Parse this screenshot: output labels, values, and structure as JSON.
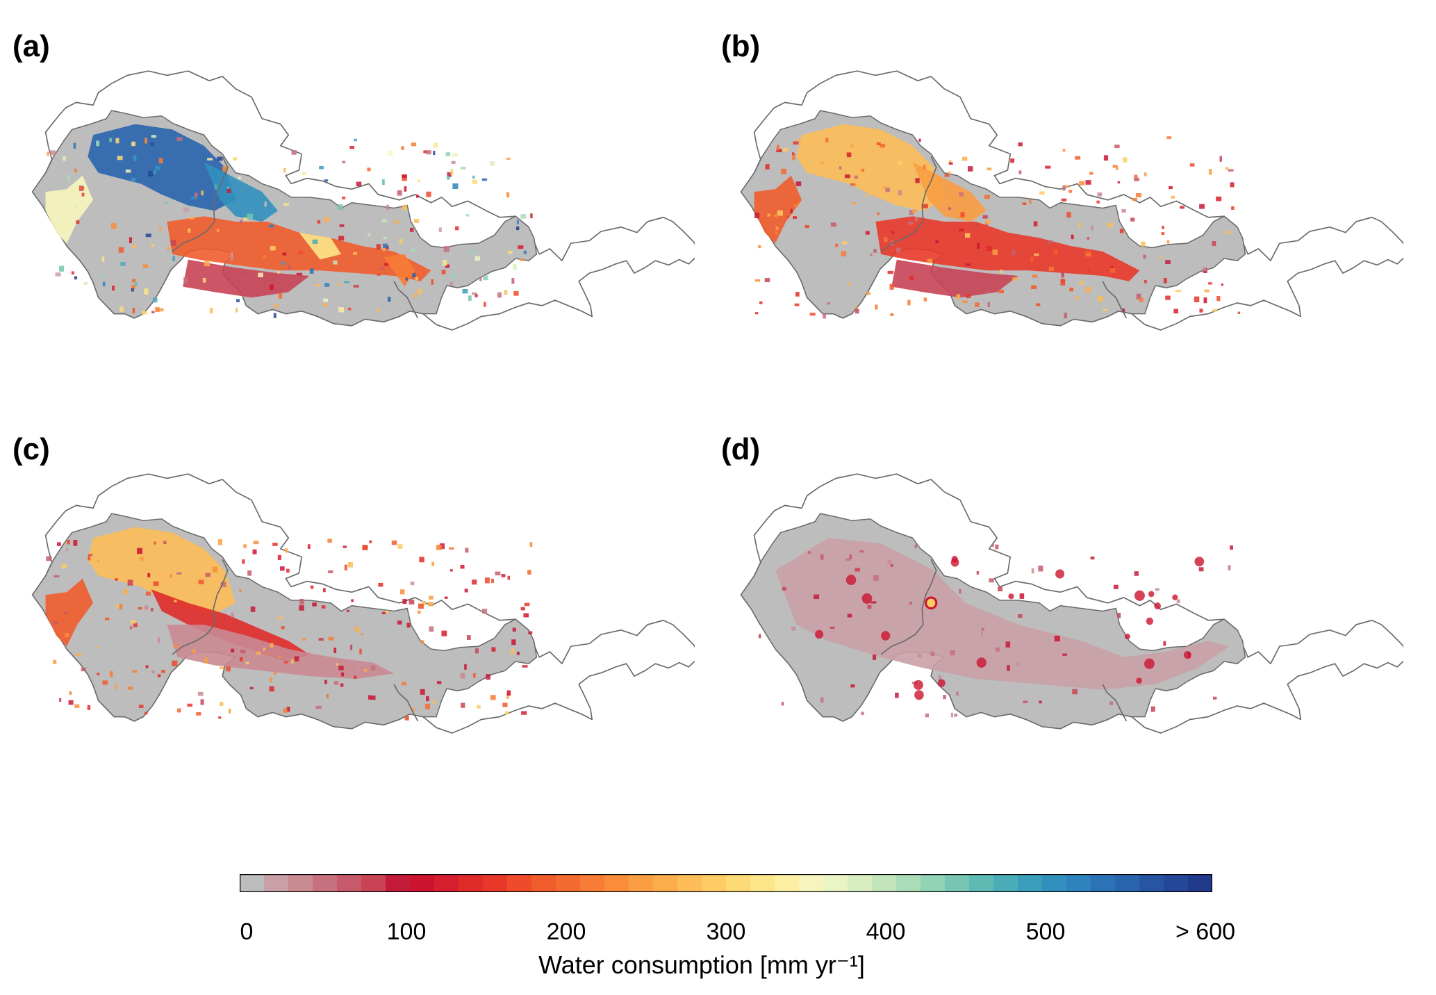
{
  "panels": [
    {
      "label": "(a)",
      "variant": "a"
    },
    {
      "label": "(b)",
      "variant": "b"
    },
    {
      "label": "(c)",
      "variant": "c"
    },
    {
      "label": "(d)",
      "variant": "d"
    }
  ],
  "colorbar": {
    "title": "Water consumption [mm yr⁻¹]",
    "ticks": [
      "0",
      "100",
      "200",
      "300",
      "400",
      "500",
      "> 600"
    ],
    "tick_values": [
      0,
      100,
      200,
      300,
      400,
      500,
      600
    ],
    "range": [
      0,
      600
    ],
    "colors": [
      "#bdbdbd",
      "#c9a0a6",
      "#c98a92",
      "#c7707e",
      "#c75a6a",
      "#c84455",
      "#c51b3a",
      "#cc1430",
      "#d61f2e",
      "#e02b2b",
      "#e8382a",
      "#ed4b2a",
      "#f15c2c",
      "#f46b31",
      "#f77c35",
      "#f98d3a",
      "#fa9d43",
      "#fbad4d",
      "#fcbd58",
      "#fdcc65",
      "#fdda76",
      "#fde58a",
      "#fcefa3",
      "#f7f5bd",
      "#eaf4c4",
      "#d8edc0",
      "#c3e5bc",
      "#abdcb8",
      "#92d2b5",
      "#77c6b3",
      "#5fbab4",
      "#4aacb7",
      "#3a9eba",
      "#3290be",
      "#2e82bd",
      "#2b73b6",
      "#2964ad",
      "#2755a3",
      "#244798",
      "#223a8c"
    ]
  }
}
